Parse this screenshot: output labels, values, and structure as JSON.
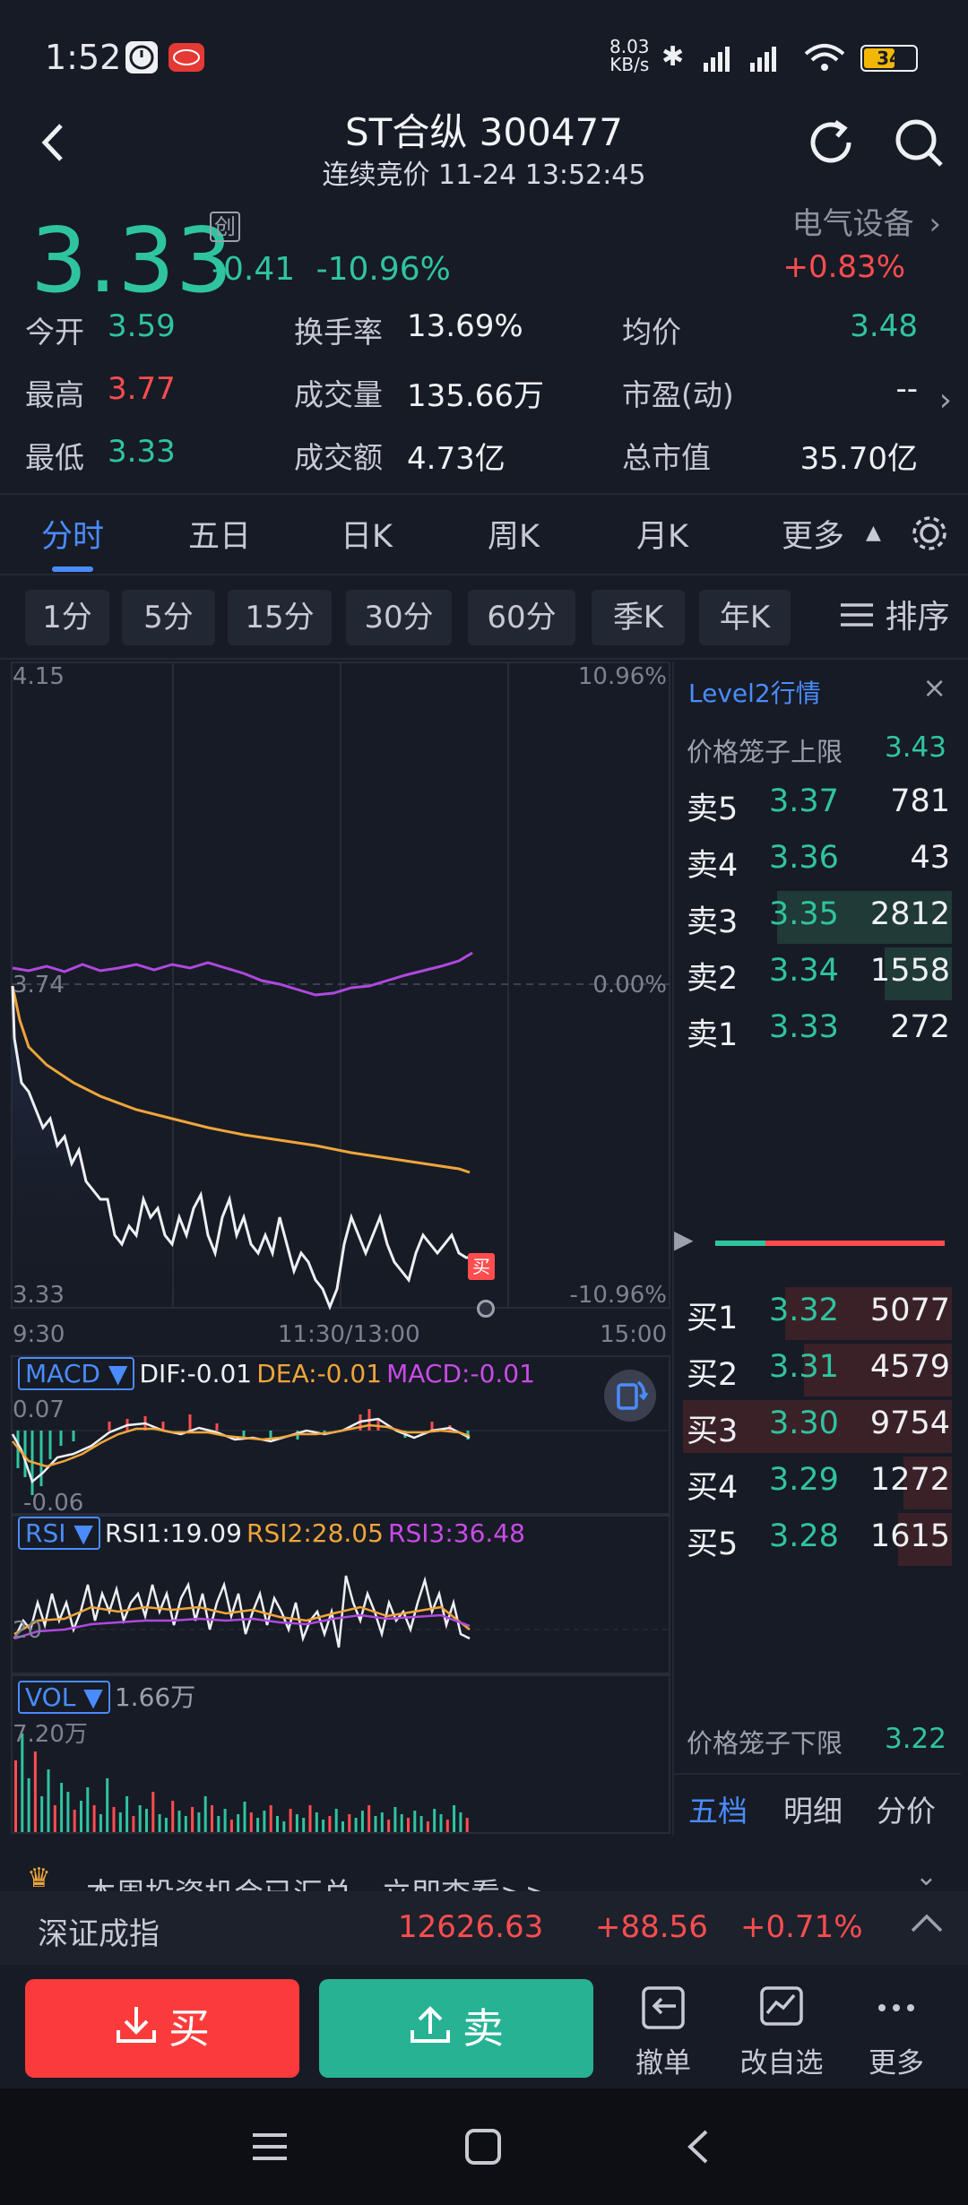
{
  "status_bar": {
    "time": "1:52",
    "net_speed_top": "8.03",
    "net_speed_unit": "KB/s",
    "battery": "34"
  },
  "header": {
    "title": "ST合纵 300477",
    "subtitle": "连续竞价 11-24 13:52:45"
  },
  "quote": {
    "price": "3.33",
    "board_badge": "创",
    "change": "-0.41",
    "change_pct": "-10.96%",
    "sector_name": "电气设备",
    "sector_pct": "+0.83%"
  },
  "stats": [
    {
      "label": "今开",
      "value": "3.59",
      "color": "#2fc4a0"
    },
    {
      "label": "换手率",
      "value": "13.69%",
      "color": "#eef0f4"
    },
    {
      "label": "均价",
      "value": "3.48",
      "color": "#2fc4a0"
    },
    {
      "label": "最高",
      "value": "3.77",
      "color": "#ff4d4f"
    },
    {
      "label": "成交量",
      "value": "135.66万",
      "color": "#eef0f4"
    },
    {
      "label": "市盈(动)",
      "value": "--",
      "color": "#eef0f4"
    },
    {
      "label": "最低",
      "value": "3.33",
      "color": "#2fc4a0"
    },
    {
      "label": "成交额",
      "value": "4.73亿",
      "color": "#eef0f4"
    },
    {
      "label": "总市值",
      "value": "35.70亿",
      "color": "#eef0f4"
    }
  ],
  "tabs": [
    "分时",
    "五日",
    "日K",
    "周K",
    "月K",
    "更多"
  ],
  "periods": [
    "1分",
    "5分",
    "15分",
    "30分",
    "60分",
    "季K",
    "年K"
  ],
  "sort_label": "排序",
  "chart": {
    "y_top": "4.15",
    "y_mid": "3.74",
    "y_bottom": "3.33",
    "pct_top": "10.96%",
    "pct_mid": "0.00%",
    "pct_bottom": "-10.96%",
    "x_start": "9:30",
    "x_mid": "11:30/13:00",
    "x_end": "15:00",
    "buy_marker": "买"
  },
  "macd": {
    "name": "MACD",
    "dif": "DIF:-0.01",
    "dea": "DEA:-0.01",
    "macd": "MACD:-0.01",
    "y_top": "0.07",
    "y_bottom": "-0.06"
  },
  "rsi": {
    "name": "RSI",
    "rsi1": "RSI1:19.09",
    "rsi2": "RSI2:28.05",
    "rsi3": "RSI3:36.48",
    "y_low": "20"
  },
  "vol": {
    "name": "VOL",
    "value": "1.66万",
    "y_top": "7.20万"
  },
  "level2": {
    "title": "Level2行情",
    "upper_label": "价格笼子上限",
    "upper_value": "3.43",
    "lower_label": "价格笼子下限",
    "lower_value": "3.22",
    "asks": [
      {
        "label": "卖5",
        "price": "3.37",
        "vol": "781"
      },
      {
        "label": "卖4",
        "price": "3.36",
        "vol": "43"
      },
      {
        "label": "卖3",
        "price": "3.35",
        "vol": "2812"
      },
      {
        "label": "卖2",
        "price": "3.34",
        "vol": "1558"
      },
      {
        "label": "卖1",
        "price": "3.33",
        "vol": "272"
      }
    ],
    "bids": [
      {
        "label": "买1",
        "price": "3.32",
        "vol": "5077"
      },
      {
        "label": "买2",
        "price": "3.31",
        "vol": "4579"
      },
      {
        "label": "买3",
        "price": "3.30",
        "vol": "9754"
      },
      {
        "label": "买4",
        "price": "3.29",
        "vol": "1272"
      },
      {
        "label": "买5",
        "price": "3.28",
        "vol": "1615"
      }
    ],
    "bottom_tabs": [
      "五档",
      "明细",
      "分价"
    ]
  },
  "news": {
    "text": "本周投资机会已汇总，立即查看>>"
  },
  "index": {
    "name": "深证成指",
    "value": "12626.63",
    "change": "+88.56",
    "pct": "+0.71%"
  },
  "actions": {
    "buy": "买",
    "sell": "卖",
    "cancel": "撤单",
    "watchlist": "改自选",
    "more": "更多"
  }
}
